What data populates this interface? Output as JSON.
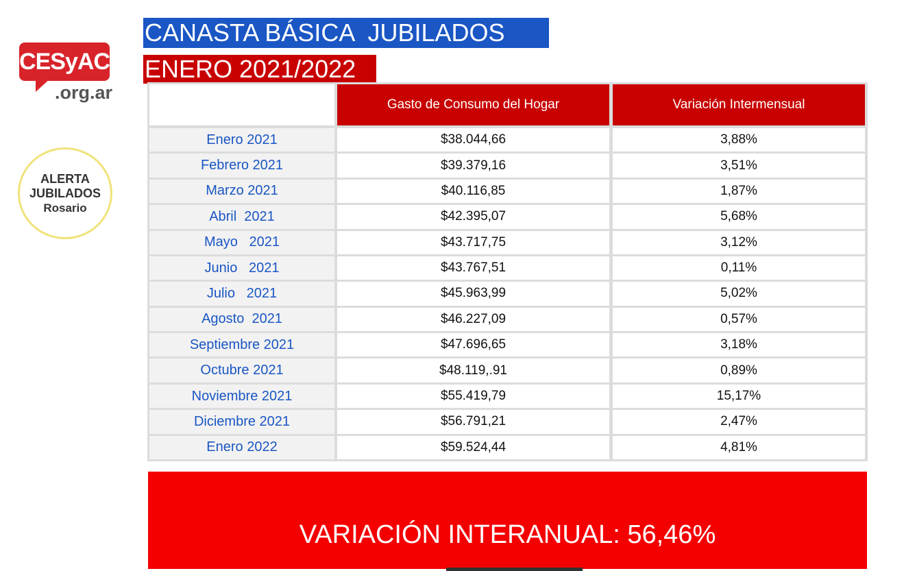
{
  "logo": {
    "name": "CESyAC",
    "domain": ".org.ar"
  },
  "badge": {
    "lines": [
      "ALERTA",
      "JUBILADOS",
      "Rosario"
    ]
  },
  "header": {
    "title": "CANASTA BÁSICA  JUBILADOS",
    "subtitle": "ENERO 2021/2022"
  },
  "table": {
    "columns": [
      "Gasto de Consumo del Hogar",
      "Variación Intermensual"
    ],
    "rows": [
      [
        "Enero 2021",
        "$38.044,66",
        "3,88%"
      ],
      [
        "Febrero 2021",
        "$39.379,16",
        "3,51%"
      ],
      [
        "Marzo 2021",
        "$40.116,85",
        "1,87%"
      ],
      [
        "Abril  2021",
        "$42.395,07",
        "5,68%"
      ],
      [
        "Mayo   2021",
        "$43.717,75",
        "3,12%"
      ],
      [
        "Junio   2021",
        "$43.767,51",
        "0,11%"
      ],
      [
        "Julio   2021",
        "$45.963,99",
        "5,02%"
      ],
      [
        "Agosto  2021",
        "$46.227,09",
        "0,57%"
      ],
      [
        "Septiembre 2021",
        "$47.696,65",
        "3,18%"
      ],
      [
        "Octubre 2021",
        "$48.119,.91",
        "0,89%"
      ],
      [
        "Noviembre 2021",
        "$55.419,79",
        "15,17%"
      ],
      [
        "Diciembre 2021",
        "$56.791,21",
        "2,47%"
      ],
      [
        "Enero 2022",
        "$59.524,44",
        "4,81%"
      ]
    ]
  },
  "footer": {
    "text": "VARIACIÓN INTERANUAL: 56,46%"
  }
}
